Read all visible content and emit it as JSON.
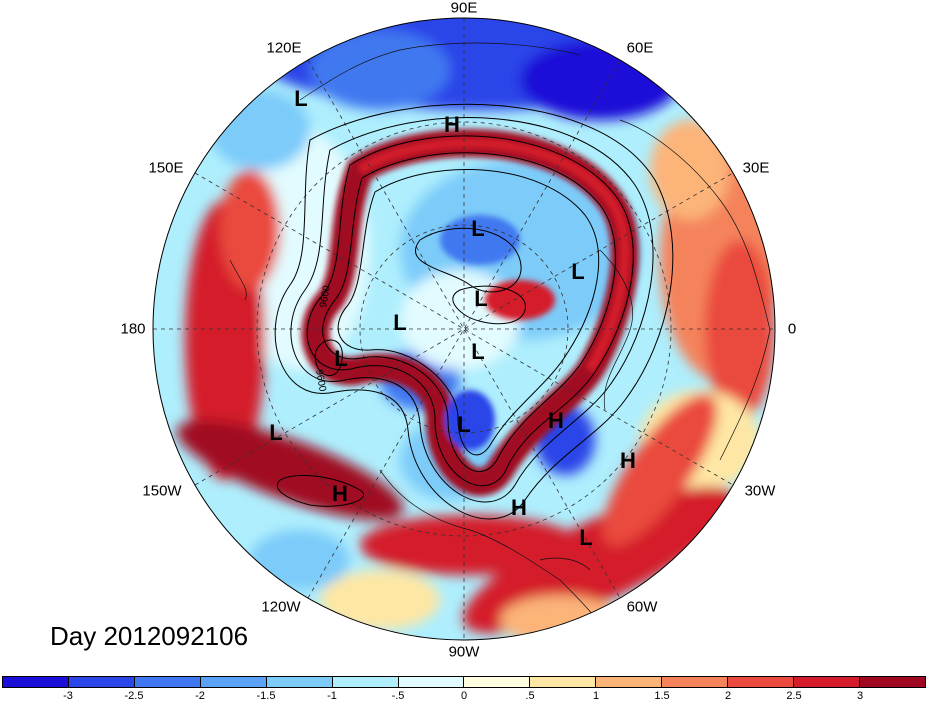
{
  "day_label": "Day 2012092106",
  "longitude_labels": [
    {
      "text": "90E",
      "name": "lon-label-90e"
    },
    {
      "text": "60E",
      "name": "lon-label-60e"
    },
    {
      "text": "120E",
      "name": "lon-label-120e"
    },
    {
      "text": "30E",
      "name": "lon-label-30e"
    },
    {
      "text": "150E",
      "name": "lon-label-150e"
    },
    {
      "text": "180",
      "name": "lon-label-180"
    },
    {
      "text": "0",
      "name": "lon-label-0"
    },
    {
      "text": "150W",
      "name": "lon-label-150w"
    },
    {
      "text": "30W",
      "name": "lon-label-30w"
    },
    {
      "text": "120W",
      "name": "lon-label-120w"
    },
    {
      "text": "60W",
      "name": "lon-label-60w"
    },
    {
      "text": "90W",
      "name": "lon-label-90w"
    }
  ],
  "pressure_markers": [
    "L",
    "H",
    "L",
    "L",
    "L",
    "L",
    "L",
    "L",
    "H",
    "L",
    "H",
    "H",
    "L",
    "H"
  ],
  "contour_labels": [
    "9600",
    "9600"
  ],
  "colorbar": {
    "colors": [
      "#1a0fd8",
      "#2a45e8",
      "#3f78f0",
      "#5aa2f5",
      "#7ccbf9",
      "#aeeefd",
      "#e2fbfe",
      "#fefde0",
      "#fee7a4",
      "#fcb479",
      "#f4835c",
      "#ea4a3e",
      "#d41c2c",
      "#a00822"
    ],
    "tick_labels": [
      "-3",
      "-2.5",
      "-2",
      "-1.5",
      "-1",
      "-.5",
      "0",
      ".5",
      "1",
      "1.5",
      "2",
      "2.5",
      "3"
    ]
  }
}
